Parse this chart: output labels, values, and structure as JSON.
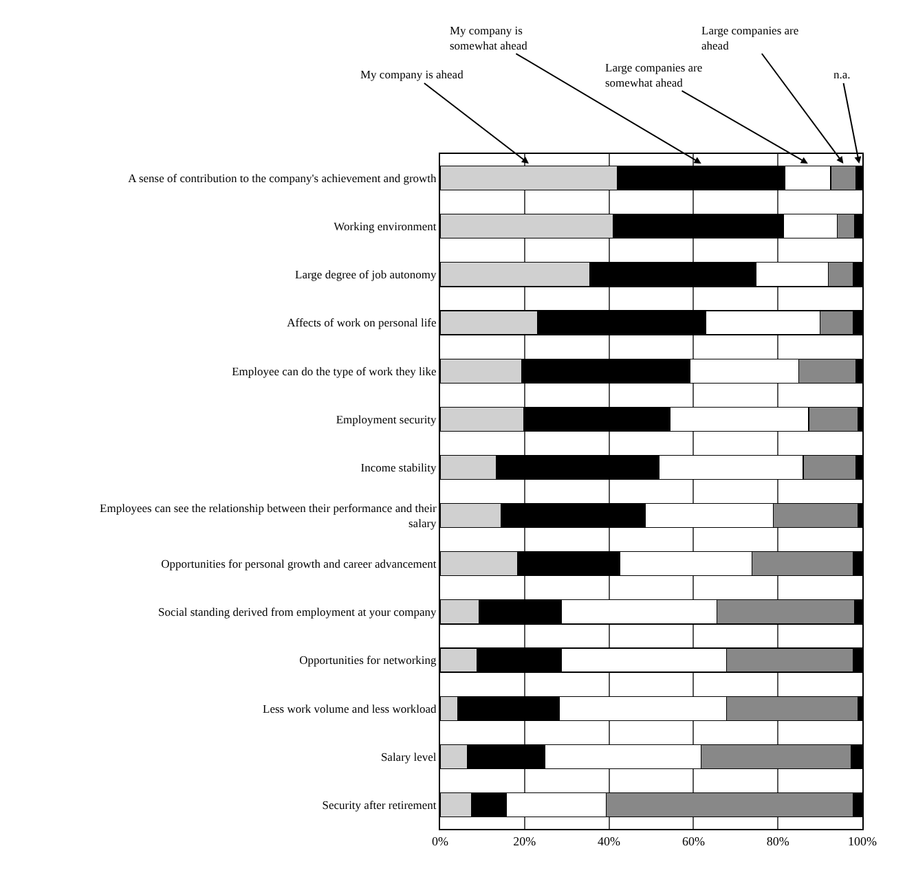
{
  "chart_data": {
    "type": "bar",
    "orientation": "horizontal",
    "stacked": true,
    "categories": [
      "A sense of contribution to the company's achievement and growth",
      "Working environment",
      "Large degree of job autonomy",
      "Affects of work on personal life",
      "Employee can do the type of work they like",
      "Employment security",
      "Income stability",
      "Employees can see the relationship between their performance and their salary",
      "Opportunities for personal growth and career advancement",
      "Social standing derived from employment at your company",
      "Opportunities for networking",
      "Less work volume and less workload",
      "Salary level",
      "Security after retirement"
    ],
    "series": [
      {
        "name": "My company is ahead",
        "color": "#d0d0d0",
        "values": [
          42.0,
          40.9,
          35.5,
          23.1,
          19.3,
          19.8,
          13.3,
          14.4,
          18.4,
          9.2,
          8.7,
          4.1,
          6.5,
          7.4
        ]
      },
      {
        "name": "My company is somewhat ahead",
        "color": "#000000",
        "values": [
          39.7,
          40.4,
          39.4,
          39.9,
          39.9,
          34.7,
          38.5,
          34.2,
          24.2,
          19.5,
          20.0,
          24.1,
          18.4,
          8.3
        ]
      },
      {
        "name": "Large companies are somewhat ahead",
        "color": "#ffffff",
        "values": [
          10.8,
          12.7,
          17.0,
          27.0,
          25.7,
          32.8,
          34.2,
          30.3,
          31.2,
          36.9,
          39.1,
          39.6,
          36.9,
          23.6
        ]
      },
      {
        "name": "Large companies are ahead",
        "color": "#888888",
        "values": [
          6.0,
          4.2,
          5.9,
          7.8,
          13.6,
          11.7,
          12.5,
          20.1,
          24.0,
          32.6,
          30.0,
          31.2,
          35.5,
          58.5
        ]
      },
      {
        "name": "n.a.",
        "color": "#000000",
        "values": [
          1.5,
          1.8,
          2.2,
          2.2,
          1.5,
          1.0,
          1.5,
          1.0,
          2.2,
          1.8,
          2.2,
          1.0,
          2.7,
          2.2
        ]
      }
    ],
    "xlim": [
      0,
      100
    ],
    "xticks": [
      {
        "value": 0,
        "label": "0%"
      },
      {
        "value": 20,
        "label": "20%"
      },
      {
        "value": 40,
        "label": "40%"
      },
      {
        "value": 60,
        "label": "60%"
      },
      {
        "value": 80,
        "label": "80%"
      },
      {
        "value": 100,
        "label": "100%"
      }
    ],
    "grid": "x"
  }
}
